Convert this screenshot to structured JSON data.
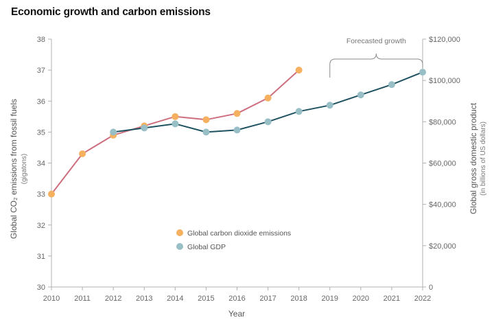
{
  "chart_data": {
    "type": "line",
    "title": "Economic growth and carbon emissions",
    "xlabel": "Year",
    "ylabel_left": "Global CO₂ emissions from fossil fuels",
    "ylabel_left_unit": "(gigatons)",
    "ylabel_right": "Global gross domestic product",
    "ylabel_right_unit": "(in billions of US dollars)",
    "x_ticks": [
      "2010",
      "2011",
      "2012",
      "2013",
      "2014",
      "2015",
      "2016",
      "2017",
      "2018",
      "2019",
      "2020",
      "2021",
      "2022"
    ],
    "y_left_ticks": [
      "30",
      "31",
      "32",
      "33",
      "34",
      "35",
      "36",
      "37",
      "38"
    ],
    "y_right_ticks": [
      "0",
      "$20,000",
      "$40,000",
      "$60,000",
      "$80,000",
      "$100,000",
      "$120,000"
    ],
    "ylim_left": [
      30,
      38
    ],
    "ylim_right": [
      0,
      120000
    ],
    "xlim": [
      2010,
      2022
    ],
    "grid": false,
    "legend_position": "center-left",
    "annotation": "Forecasted growth",
    "annotation_range": [
      2019,
      2022
    ],
    "series": [
      {
        "name": "Global carbon dioxide emissions",
        "axis": "left",
        "color": "#f5b160",
        "line_color": "#cc6e7e",
        "x": [
          2010,
          2011,
          2012,
          2013,
          2014,
          2015,
          2016,
          2017,
          2018
        ],
        "values": [
          33.0,
          34.3,
          34.9,
          35.2,
          35.5,
          35.4,
          35.6,
          36.1,
          37.0
        ]
      },
      {
        "name": "Global GDP",
        "axis": "right",
        "color": "#98bfc6",
        "line_color": "#1e5261",
        "x": [
          2012,
          2013,
          2014,
          2015,
          2016,
          2017,
          2018,
          2019,
          2020,
          2021,
          2022
        ],
        "values": [
          75000,
          77000,
          79000,
          75000,
          76000,
          80000,
          85000,
          88000,
          93000,
          98000,
          104000
        ]
      }
    ]
  }
}
